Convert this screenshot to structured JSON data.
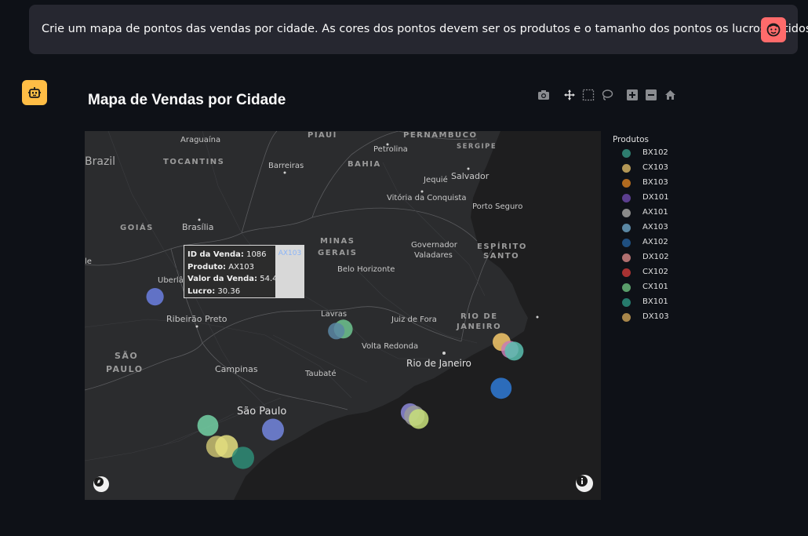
{
  "chat": {
    "user_message": "Crie um mapa de pontos das vendas por cidade. As cores dos pontos devem ser os produtos e o tamanho dos pontos os lucros obtidos."
  },
  "chart_data": {
    "type": "scatter",
    "title": "Mapa de Vendas por Cidade",
    "legend_title": "Produtos",
    "legend_position": "right",
    "legend": [
      {
        "name": "BX102",
        "color": "#2e7d6f"
      },
      {
        "name": "CX103",
        "color": "#b39756"
      },
      {
        "name": "BX103",
        "color": "#b06a1f"
      },
      {
        "name": "DX101",
        "color": "#5b3e8f"
      },
      {
        "name": "AX101",
        "color": "#8a8a8a"
      },
      {
        "name": "AX103",
        "color": "#5a87a3"
      },
      {
        "name": "AX102",
        "color": "#1f4f80"
      },
      {
        "name": "DX102",
        "color": "#b07070"
      },
      {
        "name": "CX102",
        "color": "#a83232"
      },
      {
        "name": "CX101",
        "color": "#5a9e6a"
      },
      {
        "name": "BX101",
        "color": "#267a6c"
      },
      {
        "name": "DX103",
        "color": "#a8864a"
      }
    ],
    "points": [
      {
        "lon": -48.28,
        "lat": -18.92,
        "product": "AX103",
        "profit": 30.36,
        "color": "#6b7fe0"
      },
      {
        "lon": -43.94,
        "lat": -19.92,
        "product": "CX101",
        "profit": 35,
        "color": "#6fc48f"
      },
      {
        "lon": -44.1,
        "lat": -19.98,
        "product": "AX103",
        "profit": 28,
        "color": "#5a87a3"
      },
      {
        "lon": -40.29,
        "lat": -20.32,
        "product": "DX103",
        "profit": 32,
        "color": "#f5c86a"
      },
      {
        "lon": -40.1,
        "lat": -20.55,
        "product": "DX102",
        "profit": 30,
        "color": "#c77db5"
      },
      {
        "lon": -40.0,
        "lat": -20.6,
        "product": "BX101",
        "profit": 35,
        "color": "#5bc0b0"
      },
      {
        "lon": -40.3,
        "lat": -21.75,
        "product": "AX102",
        "profit": 42,
        "color": "#2f7ad6"
      },
      {
        "lon": -42.4,
        "lat": -22.5,
        "product": "DX101",
        "profit": 34,
        "color": "#8c88d8"
      },
      {
        "lon": -42.3,
        "lat": -22.6,
        "product": "AX101",
        "profit": 40,
        "color": "#9a9a9a"
      },
      {
        "lon": -42.2,
        "lat": -22.7,
        "product": "CX103",
        "profit": 38,
        "color": "#c8e07a"
      },
      {
        "lon": -45.56,
        "lat": -23.03,
        "product": "AX103",
        "profit": 45,
        "color": "#7386de"
      },
      {
        "lon": -47.06,
        "lat": -22.9,
        "product": "CX101",
        "profit": 42,
        "color": "#73d1a5"
      },
      {
        "lon": -46.85,
        "lat": -23.55,
        "product": "CX103",
        "profit": 44,
        "color": "#c8c070"
      },
      {
        "lon": -46.63,
        "lat": -23.55,
        "product": "DX103",
        "profit": 48,
        "color": "#e5e080"
      },
      {
        "lon": -46.25,
        "lat": -23.9,
        "product": "BX101",
        "profit": 46,
        "color": "#2e8c76"
      }
    ],
    "tooltip": {
      "id_label": "ID da Venda:",
      "id_value": "1086",
      "product_label": "Produto:",
      "product_value": "AX103",
      "sale_label": "Valor da Venda:",
      "sale_value": "54.44",
      "profit_label": "Lucro:",
      "profit_value": "30.36",
      "tag": "AX103"
    }
  },
  "map_labels": {
    "countries": [
      "Brazil"
    ],
    "states": [
      "PIAUÍ",
      "PERNAMBUCO",
      "SERGIPE",
      "TOCANTINS",
      "BAHIA",
      "GOIÁS",
      "MINAS",
      "GERAIS",
      "ESPÍRITO",
      "SANTO",
      "RIO DE",
      "JANEIRO",
      "SÃO",
      "PAULO"
    ],
    "cities": [
      "Araguaína",
      "Petrolina",
      "Barreiras",
      "Jequié",
      "Salvador",
      "Vitória da Conquista",
      "Porto Seguro",
      "Brasília",
      "Governador",
      "Valadares",
      "Belo Horizonte",
      "Uberlâ",
      "Lavras",
      "Juiz de Fora",
      "Ribeirão Preto",
      "Volta Redonda",
      "Rio de Janeiro",
      "Campinas",
      "Taubaté",
      "São Paulo",
      "le"
    ]
  },
  "icons": {
    "modebar": [
      "camera-icon",
      "pan-icon",
      "box-select-icon",
      "lasso-icon",
      "zoom-in-icon",
      "zoom-out-icon",
      "home-icon"
    ]
  }
}
